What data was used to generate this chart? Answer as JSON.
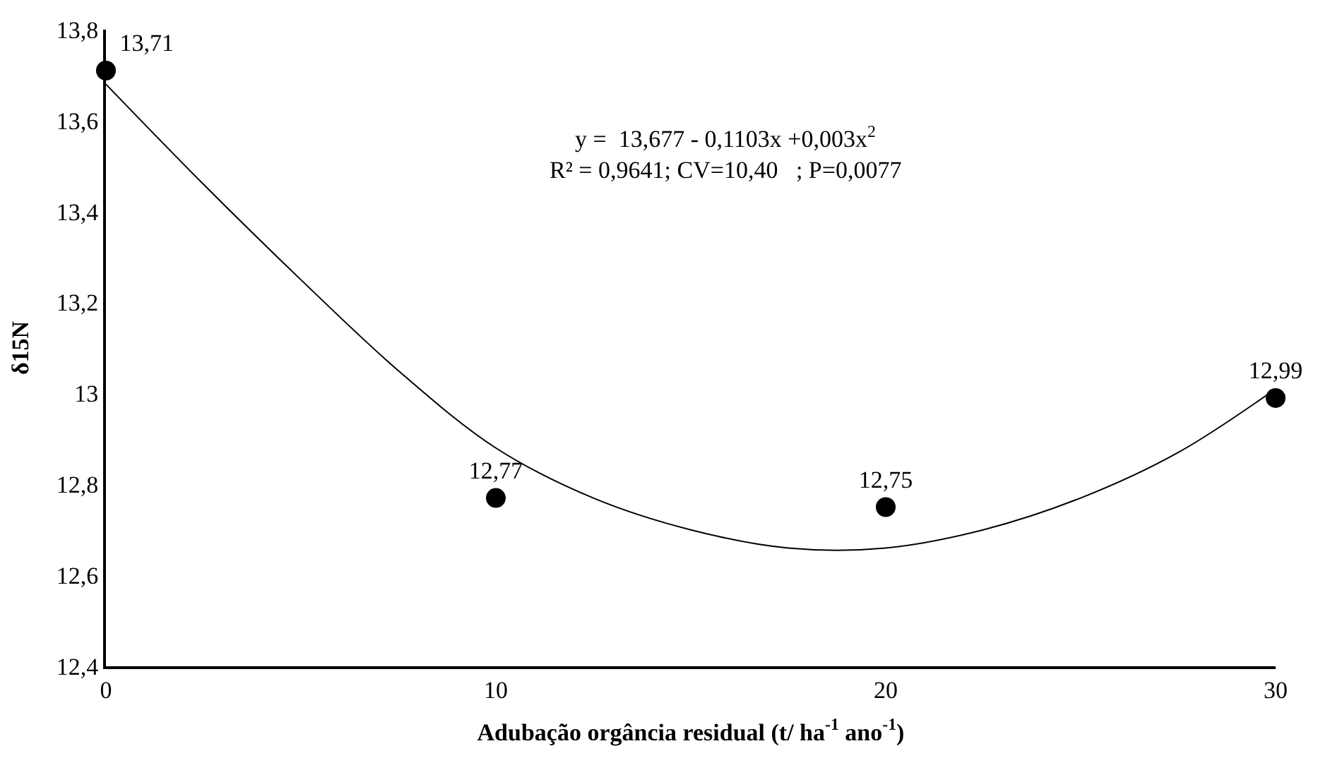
{
  "chart_data": {
    "type": "scatter",
    "xlabel": "Adubação orgância residual (t/ ha$^{-1}$ ano$^{-1}$)",
    "ylabel": "δ15N",
    "annotations": [
      "y =  13,677 - 0,1103x +0,003x$^{2}$",
      "R² = 0,9641; CV=10,40   ; P=0,0077"
    ],
    "x": [
      0,
      10,
      20,
      30
    ],
    "series": [
      {
        "color": "#000000",
        "values": [
          13.71,
          12.77,
          12.75,
          12.99
        ],
        "value_labels": [
          "13,71",
          "12,77",
          "12,75",
          "12,99"
        ],
        "marker": "circle"
      },
      {
        "type": "line",
        "color": "#000000",
        "x": [
          0,
          2.5,
          5,
          7.5,
          10,
          12.5,
          15,
          17.5,
          20,
          22.5,
          25,
          27.5,
          30
        ],
        "values": [
          13.68,
          13.46,
          13.25,
          13.05,
          12.88,
          12.77,
          12.7,
          12.66,
          12.66,
          12.7,
          12.77,
          12.87,
          13.01
        ],
        "marker": "none",
        "line_style": "solid"
      }
    ],
    "xlim": [
      0,
      30
    ],
    "xticks": [
      0,
      10,
      20,
      30
    ],
    "ylim": [
      12.4,
      13.8
    ],
    "yticks": [
      {
        "value": 12.4,
        "label": "12,4"
      },
      {
        "value": 12.6,
        "label": "12,6"
      },
      {
        "value": 12.8,
        "label": "12,8"
      },
      13,
      {
        "value": 13.2,
        "label": "13,2"
      },
      {
        "value": 13.4,
        "label": "13,4"
      },
      {
        "value": 13.6,
        "label": "13,6"
      },
      {
        "value": 13.8,
        "label": "13,8"
      }
    ]
  }
}
